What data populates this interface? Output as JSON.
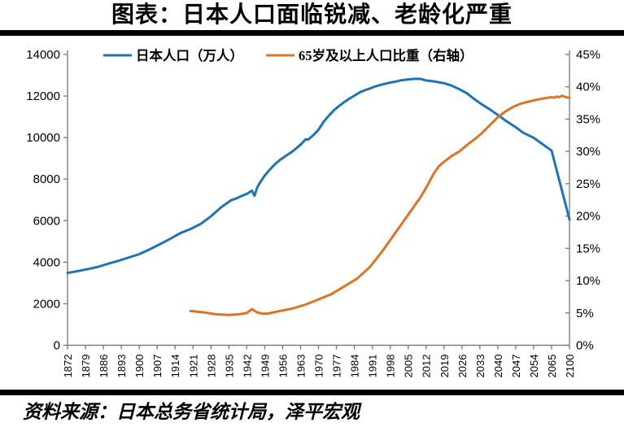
{
  "title": "图表：日本人口面临锐减、老龄化严重",
  "source": "资料来源：日本总务省统计局，泽平宏观",
  "colors": {
    "population_line": "#1F73B5",
    "aging_line": "#DD7327",
    "axis": "#7F7F7F",
    "text": "#000000",
    "divider_bar": "#000000"
  },
  "chart_data": {
    "type": "line",
    "title": "图表：日本人口面临锐减、老龄化严重",
    "xlabel": "",
    "ylabel_left": "万人",
    "ylabel_right": "%",
    "grid": false,
    "legend_position": "top",
    "legend": [
      {
        "name": "日本人口（万人）",
        "color": "#1F73B5",
        "axis": "left"
      },
      {
        "name": "65岁及以上人口比重（右轴）",
        "color": "#DD7327",
        "axis": "right"
      }
    ],
    "x_tick_labels": [
      "1872",
      "1879",
      "1886",
      "1893",
      "1900",
      "1907",
      "1914",
      "1921",
      "1928",
      "1935",
      "1942",
      "1949",
      "1956",
      "1963",
      "1970",
      "1977",
      "1984",
      "1991",
      "1998",
      "2005",
      "2012",
      "2019",
      "2026",
      "2033",
      "2040",
      "2047",
      "2054",
      "2065",
      "2100"
    ],
    "left_axis": {
      "min": 0,
      "max": 14000,
      "step": 2000,
      "tick_labels": [
        "0",
        "2000",
        "4000",
        "6000",
        "8000",
        "10000",
        "12000",
        "14000"
      ]
    },
    "right_axis": {
      "min": 0,
      "max": 45,
      "step": 5,
      "tick_labels": [
        "0%",
        "5%",
        "10%",
        "15%",
        "20%",
        "25%",
        "30%",
        "35%",
        "40%",
        "45%"
      ]
    },
    "series": [
      {
        "name": "日本人口（万人）",
        "axis": "left",
        "points": [
          [
            1872,
            3480
          ],
          [
            1876,
            3570
          ],
          [
            1880,
            3670
          ],
          [
            1884,
            3780
          ],
          [
            1888,
            3930
          ],
          [
            1892,
            4070
          ],
          [
            1896,
            4230
          ],
          [
            1900,
            4385
          ],
          [
            1904,
            4613
          ],
          [
            1908,
            4859
          ],
          [
            1912,
            5118
          ],
          [
            1916,
            5397
          ],
          [
            1920,
            5596
          ],
          [
            1924,
            5844
          ],
          [
            1928,
            6210
          ],
          [
            1932,
            6646
          ],
          [
            1936,
            6993
          ],
          [
            1938,
            7073
          ],
          [
            1940,
            7193
          ],
          [
            1942,
            7288
          ],
          [
            1944,
            7443
          ],
          [
            1945,
            7199
          ],
          [
            1946,
            7575
          ],
          [
            1947,
            7810
          ],
          [
            1949,
            8170
          ],
          [
            1951,
            8457
          ],
          [
            1953,
            8720
          ],
          [
            1955,
            8928
          ],
          [
            1957,
            9100
          ],
          [
            1960,
            9342
          ],
          [
            1963,
            9660
          ],
          [
            1965,
            9920
          ],
          [
            1966,
            9904
          ],
          [
            1968,
            10120
          ],
          [
            1970,
            10372
          ],
          [
            1972,
            10760
          ],
          [
            1974,
            11050
          ],
          [
            1976,
            11310
          ],
          [
            1978,
            11520
          ],
          [
            1980,
            11706
          ],
          [
            1982,
            11870
          ],
          [
            1984,
            12020
          ],
          [
            1986,
            12166
          ],
          [
            1988,
            12275
          ],
          [
            1990,
            12361
          ],
          [
            1992,
            12457
          ],
          [
            1994,
            12527
          ],
          [
            1996,
            12586
          ],
          [
            1998,
            12647
          ],
          [
            2000,
            12693
          ],
          [
            2002,
            12749
          ],
          [
            2005,
            12800
          ],
          [
            2008,
            12830
          ],
          [
            2010,
            12820
          ],
          [
            2012,
            12752
          ],
          [
            2015,
            12709
          ],
          [
            2019,
            12617
          ],
          [
            2022,
            12500
          ],
          [
            2025,
            12326
          ],
          [
            2028,
            12130
          ],
          [
            2031,
            11840
          ],
          [
            2034,
            11580
          ],
          [
            2037,
            11350
          ],
          [
            2040,
            11092
          ],
          [
            2043,
            10820
          ],
          [
            2047,
            10500
          ],
          [
            2050,
            10230
          ],
          [
            2054,
            9990
          ],
          [
            2065,
            9370
          ],
          [
            2100,
            6050
          ]
        ]
      },
      {
        "name": "65岁及以上人口比重（右轴）",
        "axis": "right",
        "points": [
          [
            1920,
            5.3
          ],
          [
            1925,
            5.1
          ],
          [
            1930,
            4.8
          ],
          [
            1935,
            4.7
          ],
          [
            1939,
            4.8
          ],
          [
            1942,
            5.0
          ],
          [
            1944,
            5.6
          ],
          [
            1946,
            5.1
          ],
          [
            1948,
            4.9
          ],
          [
            1950,
            4.9
          ],
          [
            1955,
            5.3
          ],
          [
            1960,
            5.7
          ],
          [
            1965,
            6.3
          ],
          [
            1970,
            7.1
          ],
          [
            1975,
            7.9
          ],
          [
            1980,
            9.1
          ],
          [
            1985,
            10.3
          ],
          [
            1990,
            12.1
          ],
          [
            1995,
            14.6
          ],
          [
            2000,
            17.4
          ],
          [
            2005,
            20.2
          ],
          [
            2010,
            23.0
          ],
          [
            2013,
            25.1
          ],
          [
            2015,
            26.6
          ],
          [
            2017,
            27.7
          ],
          [
            2019,
            28.4
          ],
          [
            2022,
            29.3
          ],
          [
            2025,
            30.0
          ],
          [
            2028,
            31.0
          ],
          [
            2031,
            31.9
          ],
          [
            2034,
            32.9
          ],
          [
            2037,
            34.1
          ],
          [
            2040,
            35.3
          ],
          [
            2043,
            36.2
          ],
          [
            2046,
            36.9
          ],
          [
            2049,
            37.4
          ],
          [
            2052,
            37.7
          ],
          [
            2054,
            37.9
          ],
          [
            2058,
            38.1
          ],
          [
            2065,
            38.4
          ],
          [
            2070,
            38.3
          ],
          [
            2075,
            38.5
          ],
          [
            2080,
            38.4
          ],
          [
            2086,
            38.6
          ],
          [
            2092,
            38.4
          ],
          [
            2100,
            38.3
          ]
        ]
      }
    ]
  }
}
